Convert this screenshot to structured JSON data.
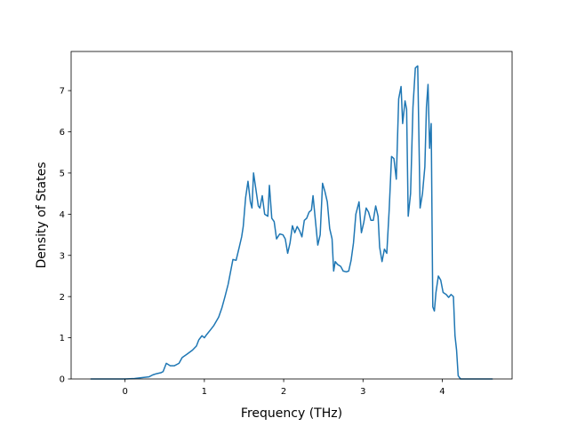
{
  "chart_data": {
    "type": "line",
    "title": "",
    "xlabel": "Frequency (THz)",
    "ylabel": "Density of States",
    "xlim": [
      -0.68,
      4.88
    ],
    "ylim": [
      0,
      7.95
    ],
    "xticks": [
      0,
      1,
      2,
      3,
      4
    ],
    "yticks": [
      0,
      1,
      2,
      3,
      4,
      5,
      6,
      7
    ],
    "grid": false,
    "legend": "none",
    "series": [
      {
        "color": "#1f77b4",
        "x": [
          -0.43,
          -0.2,
          0.0,
          0.12,
          0.2,
          0.3,
          0.35,
          0.4,
          0.45,
          0.48,
          0.52,
          0.57,
          0.62,
          0.68,
          0.72,
          0.78,
          0.85,
          0.9,
          0.93,
          0.97,
          1.0,
          1.03,
          1.08,
          1.12,
          1.18,
          1.22,
          1.26,
          1.3,
          1.33,
          1.36,
          1.4,
          1.44,
          1.47,
          1.49,
          1.52,
          1.55,
          1.58,
          1.6,
          1.62,
          1.65,
          1.68,
          1.7,
          1.73,
          1.76,
          1.8,
          1.82,
          1.85,
          1.88,
          1.91,
          1.95,
          1.99,
          2.02,
          2.05,
          2.08,
          2.11,
          2.14,
          2.17,
          2.2,
          2.23,
          2.26,
          2.29,
          2.32,
          2.35,
          2.37,
          2.4,
          2.43,
          2.46,
          2.49,
          2.52,
          2.55,
          2.58,
          2.61,
          2.63,
          2.65,
          2.68,
          2.72,
          2.75,
          2.79,
          2.82,
          2.85,
          2.88,
          2.91,
          2.95,
          2.98,
          3.01,
          3.04,
          3.07,
          3.1,
          3.13,
          3.16,
          3.19,
          3.21,
          3.24,
          3.27,
          3.3,
          3.33,
          3.36,
          3.39,
          3.42,
          3.45,
          3.48,
          3.5,
          3.53,
          3.55,
          3.57,
          3.6,
          3.63,
          3.66,
          3.69,
          3.72,
          3.75,
          3.78,
          3.8,
          3.82,
          3.84,
          3.86,
          3.88,
          3.9,
          3.92,
          3.95,
          3.98,
          4.01,
          4.05,
          4.08,
          4.11,
          4.14,
          4.16,
          4.18,
          4.2,
          4.23,
          4.3,
          4.45,
          4.63
        ],
        "y": [
          0.0,
          0.0,
          0.0,
          0.01,
          0.03,
          0.05,
          0.1,
          0.13,
          0.15,
          0.18,
          0.38,
          0.32,
          0.32,
          0.38,
          0.52,
          0.6,
          0.7,
          0.8,
          0.95,
          1.05,
          1.0,
          1.08,
          1.2,
          1.3,
          1.5,
          1.72,
          2.0,
          2.3,
          2.6,
          2.9,
          2.88,
          3.2,
          3.45,
          3.7,
          4.4,
          4.8,
          4.3,
          4.15,
          5.0,
          4.6,
          4.2,
          4.15,
          4.45,
          4.0,
          3.95,
          4.7,
          3.9,
          3.82,
          3.4,
          3.52,
          3.5,
          3.4,
          3.05,
          3.3,
          3.72,
          3.55,
          3.7,
          3.6,
          3.45,
          3.85,
          3.9,
          4.05,
          4.1,
          4.45,
          3.85,
          3.25,
          3.5,
          4.75,
          4.55,
          4.3,
          3.65,
          3.4,
          2.62,
          2.85,
          2.78,
          2.73,
          2.62,
          2.6,
          2.62,
          2.88,
          3.3,
          4.0,
          4.3,
          3.55,
          3.8,
          4.15,
          4.05,
          3.85,
          3.85,
          4.2,
          3.95,
          3.2,
          2.85,
          3.15,
          3.05,
          4.1,
          5.4,
          5.35,
          4.85,
          6.8,
          7.1,
          6.2,
          6.75,
          6.55,
          3.95,
          4.5,
          6.6,
          7.55,
          7.6,
          4.15,
          4.5,
          5.15,
          6.6,
          7.15,
          5.6,
          6.2,
          1.75,
          1.65,
          2.1,
          2.5,
          2.4,
          2.1,
          2.05,
          1.98,
          2.05,
          2.0,
          1.05,
          0.7,
          0.08,
          0.0,
          0.0,
          0.0,
          0.0
        ]
      }
    ]
  }
}
